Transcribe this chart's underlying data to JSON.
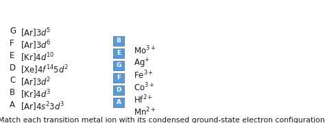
{
  "title": "Match each transition metal ion with its condensed ground-state electron configuration.",
  "left_labels": [
    "A",
    "B",
    "C",
    "D",
    "E",
    "F",
    "G"
  ],
  "right_entries": [
    {
      "letter": "A",
      "ion": "Mn$^{2+}$"
    },
    {
      "letter": "D",
      "ion": "Hf$^{2+}$"
    },
    {
      "letter": "F",
      "ion": "Co$^{3+}$"
    },
    {
      "letter": "G",
      "ion": "Fe$^{3+}$"
    },
    {
      "letter": "E",
      "ion": "Ag$^{+}$"
    },
    {
      "letter": "B",
      "ion": "Mo$^{3+}$"
    }
  ],
  "bg_color": "#ffffff",
  "text_color": "#1a1a1a",
  "box_bg": "#5b9bd5",
  "box_border": "#4a86c0",
  "box_text_color": "#ffffff",
  "title_fontsize": 7.8,
  "label_fontsize": 8.5,
  "config_fontsize": 8.5
}
